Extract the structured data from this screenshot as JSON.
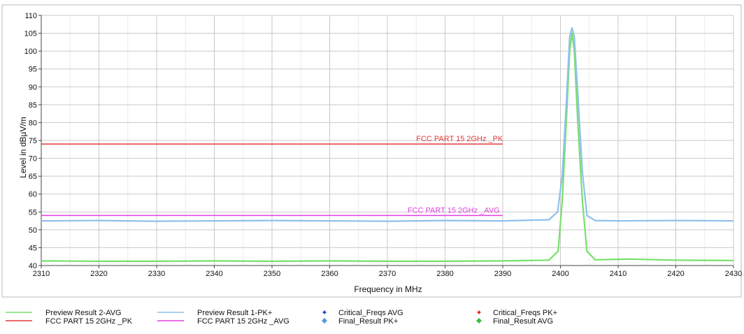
{
  "chart_data": {
    "type": "line",
    "xlabel": "Frequency in MHz",
    "ylabel": "Level in dBµV/m",
    "xlim": [
      2310,
      2430
    ],
    "ylim": [
      40,
      110
    ],
    "x_ticks": [
      2310,
      2320,
      2330,
      2340,
      2350,
      2360,
      2370,
      2380,
      2390,
      2400,
      2410,
      2420,
      2430
    ],
    "y_ticks": [
      40,
      45,
      50,
      55,
      60,
      65,
      70,
      75,
      80,
      85,
      90,
      95,
      100,
      105,
      110
    ],
    "grid": true,
    "series": [
      {
        "name": "Preview Result 1-PK+",
        "color": "#8fc0ec",
        "x": [
          2310,
          2320,
          2330,
          2340,
          2350,
          2360,
          2370,
          2380,
          2390,
          2398,
          2399.5,
          2400.3,
          2401,
          2401.6,
          2402,
          2402.4,
          2403,
          2403.8,
          2404.6,
          2406,
          2410,
          2420,
          2430
        ],
        "y": [
          52.5,
          52.6,
          52.4,
          52.5,
          52.6,
          52.5,
          52.4,
          52.6,
          52.5,
          52.8,
          55,
          65,
          85,
          104,
          106.5,
          104,
          88,
          66,
          54,
          52.6,
          52.5,
          52.6,
          52.5
        ]
      },
      {
        "name": "Preview Result 2-AVG",
        "color": "#77e06a",
        "x": [
          2310,
          2320,
          2330,
          2340,
          2350,
          2360,
          2370,
          2380,
          2390,
          2398,
          2399.6,
          2400.3,
          2401,
          2401.6,
          2402,
          2402.4,
          2403,
          2403.8,
          2404.6,
          2406,
          2412,
          2420,
          2430
        ],
        "y": [
          41.3,
          41.2,
          41.2,
          41.3,
          41.2,
          41.3,
          41.2,
          41.2,
          41.3,
          41.5,
          44,
          58,
          80,
          100,
          105,
          100,
          80,
          58,
          44,
          41.6,
          41.8,
          41.5,
          41.4
        ]
      },
      {
        "name": "FCC PART 15 2GHz _PK",
        "color": "#e03a3a",
        "x": [
          2310,
          2390
        ],
        "y": [
          74,
          74
        ]
      },
      {
        "name": "FCC PART 15 2GHz _AVG",
        "color": "#e040e0",
        "x": [
          2310,
          2390
        ],
        "y": [
          54,
          54
        ]
      }
    ],
    "annotations": [
      {
        "text": "FCC PART 15 2GHz _PK",
        "x": 2375,
        "y": 74,
        "color": "#e03a3a"
      },
      {
        "text": "FCC PART 15 2GHz _AVG",
        "x": 2373.5,
        "y": 54,
        "color": "#e040e0"
      }
    ],
    "legend": {
      "placement": "bottom",
      "entries": [
        {
          "label": "Preview Result 2-AVG",
          "marker": "line",
          "color": "#77e06a"
        },
        {
          "label": "FCC PART 15 2GHz _PK",
          "marker": "line",
          "color": "#e03a3a"
        },
        {
          "label": "Preview Result 1-PK+",
          "marker": "line",
          "color": "#8fc0ec"
        },
        {
          "label": "FCC PART 15 2GHz _AVG",
          "marker": "line",
          "color": "#e040e0"
        },
        {
          "label": "Critical_Freqs AVG",
          "marker": "star",
          "color": "#1f3fbf"
        },
        {
          "label": "Final_Result PK+",
          "marker": "diamond",
          "color": "#5599dd"
        },
        {
          "label": "Critical_Freqs PK+",
          "marker": "star",
          "color": "#e02020"
        },
        {
          "label": "Final_Result AVG",
          "marker": "diamond",
          "color": "#44bb44"
        }
      ]
    }
  }
}
